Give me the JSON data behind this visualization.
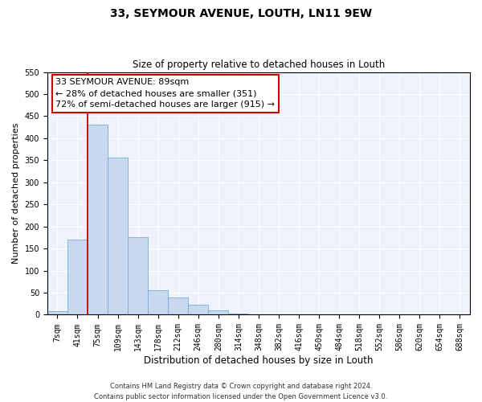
{
  "title": "33, SEYMOUR AVENUE, LOUTH, LN11 9EW",
  "subtitle": "Size of property relative to detached houses in Louth",
  "xlabel": "Distribution of detached houses by size in Louth",
  "ylabel": "Number of detached properties",
  "bin_labels": [
    "7sqm",
    "41sqm",
    "75sqm",
    "109sqm",
    "143sqm",
    "178sqm",
    "212sqm",
    "246sqm",
    "280sqm",
    "314sqm",
    "348sqm",
    "382sqm",
    "416sqm",
    "450sqm",
    "484sqm",
    "518sqm",
    "552sqm",
    "586sqm",
    "620sqm",
    "654sqm",
    "688sqm"
  ],
  "bar_heights": [
    8,
    170,
    430,
    356,
    175,
    56,
    40,
    22,
    10,
    2,
    0,
    0,
    0,
    1,
    0,
    0,
    0,
    0,
    0,
    1,
    0
  ],
  "bar_color": "#c8d8ee",
  "bar_edge_color": "#7aafd4",
  "vline_color": "#cc0000",
  "ylim": [
    0,
    550
  ],
  "yticks": [
    0,
    50,
    100,
    150,
    200,
    250,
    300,
    350,
    400,
    450,
    500,
    550
  ],
  "annotation_title": "33 SEYMOUR AVENUE: 89sqm",
  "annotation_line1": "← 28% of detached houses are smaller (351)",
  "annotation_line2": "72% of semi-detached houses are larger (915) →",
  "annotation_box_color": "#ffffff",
  "annotation_box_edge": "#cc0000",
  "footer_line1": "Contains HM Land Registry data © Crown copyright and database right 2024.",
  "footer_line2": "Contains public sector information licensed under the Open Government Licence v3.0.",
  "background_color": "#eef2fb",
  "grid_color": "#ffffff",
  "title_fontsize": 10,
  "subtitle_fontsize": 8.5,
  "ylabel_fontsize": 8,
  "xlabel_fontsize": 8.5,
  "tick_fontsize": 7,
  "footer_fontsize": 6,
  "annotation_fontsize": 8
}
